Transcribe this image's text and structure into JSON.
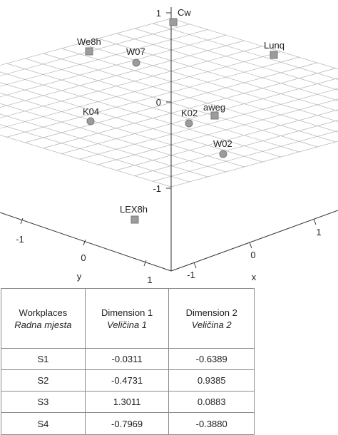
{
  "chart_data": {
    "type": "scatter",
    "subtype": "3d-scatter",
    "axes": {
      "z": {
        "ticks": [
          "1",
          "0",
          "-1"
        ],
        "range": [
          -1.4,
          1.1
        ]
      },
      "y": {
        "label": "y",
        "ticks": [
          "-1",
          "0",
          "1"
        ]
      },
      "x": {
        "label": "x",
        "ticks": [
          "-1",
          "0",
          "1"
        ]
      }
    },
    "points": [
      {
        "label": "Cw",
        "marker": "square",
        "x": 0.85,
        "y": -0.2,
        "z": 1.0
      },
      {
        "label": "Lunq",
        "marker": "square",
        "x": 0.3,
        "y": -1.1,
        "z": 0.25
      },
      {
        "label": "We8h",
        "marker": "square",
        "x": -0.75,
        "y": -0.5,
        "z": 0.35
      },
      {
        "label": "W07",
        "marker": "circle",
        "x": -0.25,
        "y": -0.4,
        "z": 0.3
      },
      {
        "label": "K04",
        "marker": "circle",
        "x": -0.2,
        "y": 0.8,
        "z": 0.25
      },
      {
        "label": "K02",
        "marker": "circle",
        "x": -0.1,
        "y": 0.0,
        "z": -0.15
      },
      {
        "label": "aweg",
        "marker": "square",
        "x": 0.15,
        "y": -0.15,
        "z": -0.05
      },
      {
        "label": "W02",
        "marker": "circle",
        "x": 0.1,
        "y": 0.0,
        "z": -0.55
      },
      {
        "label": "LEX8h",
        "marker": "square",
        "x": -0.15,
        "y": 0.8,
        "z": -1.05
      }
    ]
  },
  "table": {
    "headers": [
      {
        "line1": "Workplaces",
        "line2": "Radna mjesta"
      },
      {
        "line1": "Dimension 1",
        "line2": "Veličina 1"
      },
      {
        "line1": "Dimension 2",
        "line2": "Veličina 2"
      }
    ],
    "rows": [
      [
        "S1",
        "-0.0311",
        "-0.6389"
      ],
      [
        "S2",
        "-0.4731",
        "0.9385"
      ],
      [
        "S3",
        "1.3011",
        "0.0883"
      ],
      [
        "S4",
        "-0.7969",
        "-0.3880"
      ]
    ]
  },
  "colors": {
    "marker_fill": "#9c9c9c",
    "marker_stroke": "#7a7a7a",
    "axis": "#333333",
    "grid": "#b5b5b5"
  }
}
